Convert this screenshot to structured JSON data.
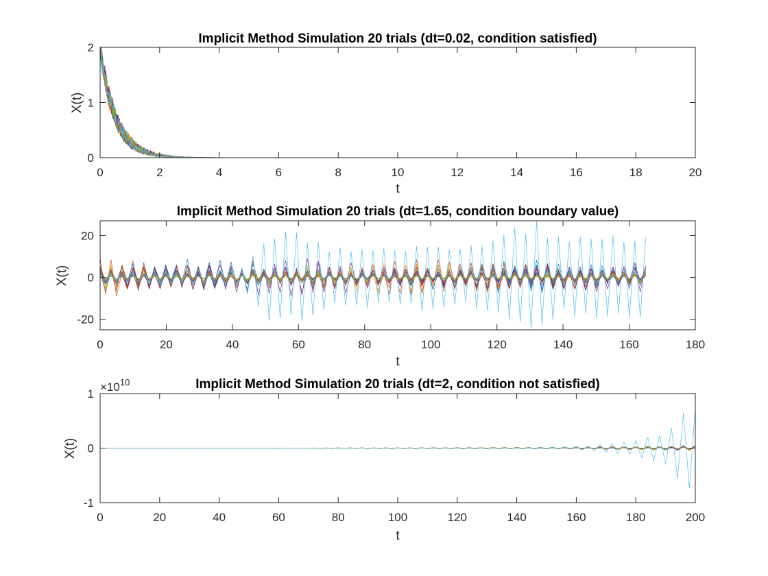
{
  "figure": {
    "background": "#ffffff",
    "axis_color": "#262626",
    "line_width": 0.7
  },
  "chart_data": [
    {
      "type": "line",
      "title": "Implicit Method Simulation 20 trials (dt=0.02, condition satisfied)",
      "xlabel": "t",
      "ylabel": "X(t)",
      "xlim": [
        0,
        20
      ],
      "ylim": [
        0,
        2
      ],
      "xticks": [
        0,
        2,
        4,
        6,
        8,
        10,
        12,
        14,
        16,
        18,
        20
      ],
      "yticks": [
        0,
        1,
        2
      ],
      "exponent_label": "",
      "grid": false,
      "legend": "none",
      "n_series": 20,
      "dt": 0.02,
      "t_end": 20,
      "x0": 2,
      "decay_rate": 2,
      "noise": 0.05,
      "alt_amplitude": 0,
      "alt_growth": 0,
      "late_jitter": 0,
      "outlier_index": -1,
      "outlier_profile": []
    },
    {
      "type": "line",
      "title": "Implicit Method Simulation 20 trials (dt=1.65, condition boundary value)",
      "xlabel": "t",
      "ylabel": "X(t)",
      "xlim": [
        0,
        180
      ],
      "ylim": [
        -25,
        27
      ],
      "xticks": [
        0,
        20,
        40,
        60,
        80,
        100,
        120,
        140,
        160,
        180
      ],
      "yticks": [
        -20,
        0,
        20
      ],
      "exponent_label": "",
      "grid": false,
      "legend": "none",
      "n_series": 20,
      "dt": 1.65,
      "t_end": 165,
      "x0": 2,
      "decay_rate": 0,
      "noise": 0,
      "alt_amplitude": 2.0,
      "alt_growth": 0,
      "late_jitter": 0.6,
      "outlier_index": 19,
      "outlier_profile": [
        [
          0,
          2
        ],
        [
          20,
          3
        ],
        [
          43,
          5
        ],
        [
          46,
          11
        ],
        [
          52,
          23
        ],
        [
          60,
          22
        ],
        [
          70,
          14
        ],
        [
          80,
          15
        ],
        [
          90,
          14
        ],
        [
          100,
          17
        ],
        [
          110,
          14
        ],
        [
          118,
          19
        ],
        [
          124,
          23
        ],
        [
          132,
          27
        ],
        [
          140,
          18
        ],
        [
          150,
          22
        ],
        [
          158,
          19
        ],
        [
          165,
          20
        ]
      ]
    },
    {
      "type": "line",
      "title": "Implicit Method Simulation 20 trials (dt=2, condition not satisfied)",
      "xlabel": "t",
      "ylabel": "X(t)",
      "xlim": [
        0,
        200
      ],
      "ylim": [
        -1,
        1
      ],
      "xticks": [
        0,
        20,
        40,
        60,
        80,
        100,
        120,
        140,
        160,
        180,
        200
      ],
      "yticks": [
        -1,
        0,
        1
      ],
      "exponent_label": "10",
      "grid": false,
      "legend": "none",
      "n_series": 20,
      "dt": 2,
      "t_end": 200,
      "x0": 2e-10,
      "decay_rate": 0,
      "noise": 0,
      "alt_amplitude": 0.08,
      "alt_growth": 0.0205,
      "late_jitter": 0.5,
      "outlier_index": 19,
      "outlier_profile": [
        [
          0,
          0
        ],
        [
          140,
          0.001
        ],
        [
          160,
          0.02
        ],
        [
          180,
          0.15
        ],
        [
          190,
          0.3
        ],
        [
          196,
          0.73
        ],
        [
          200,
          0.82
        ]
      ]
    }
  ],
  "series_colors": [
    "#0072bd",
    "#d95319",
    "#edb120",
    "#7e2f8e",
    "#77ac30",
    "#4dbeee",
    "#a2142f",
    "#0072bd",
    "#d95319",
    "#edb120",
    "#7e2f8e",
    "#77ac30",
    "#4dbeee",
    "#a2142f",
    "#0072bd",
    "#d95319",
    "#edb120",
    "#7e2f8e",
    "#77ac30",
    "#4dbeee"
  ]
}
